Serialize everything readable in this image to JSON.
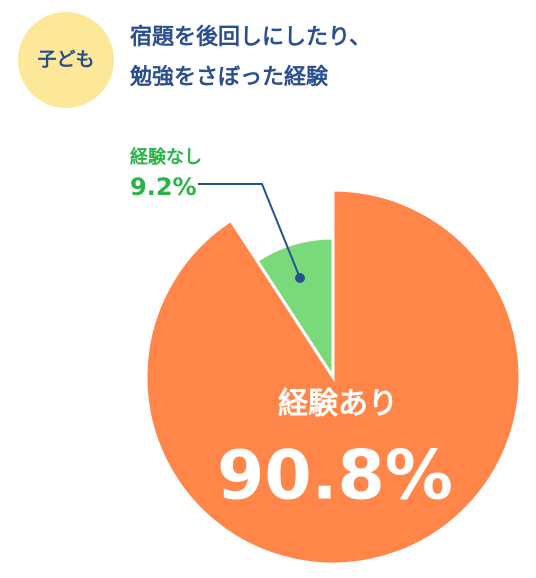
{
  "badge": "子ども",
  "chart_data": {
    "type": "pie",
    "title": [
      "宿題を後回しにしたり、",
      "勉強をさぼった経験"
    ],
    "categories": [
      "経験あり",
      "経験なし"
    ],
    "values": [
      90.8,
      9.2
    ],
    "value_labels": [
      "90.8%",
      "9.2%"
    ],
    "colors": [
      "#ff8548",
      "#79d97b"
    ],
    "label_colors": [
      "#ffffff",
      "#2bb34a"
    ],
    "leader_color": "#24548f"
  }
}
